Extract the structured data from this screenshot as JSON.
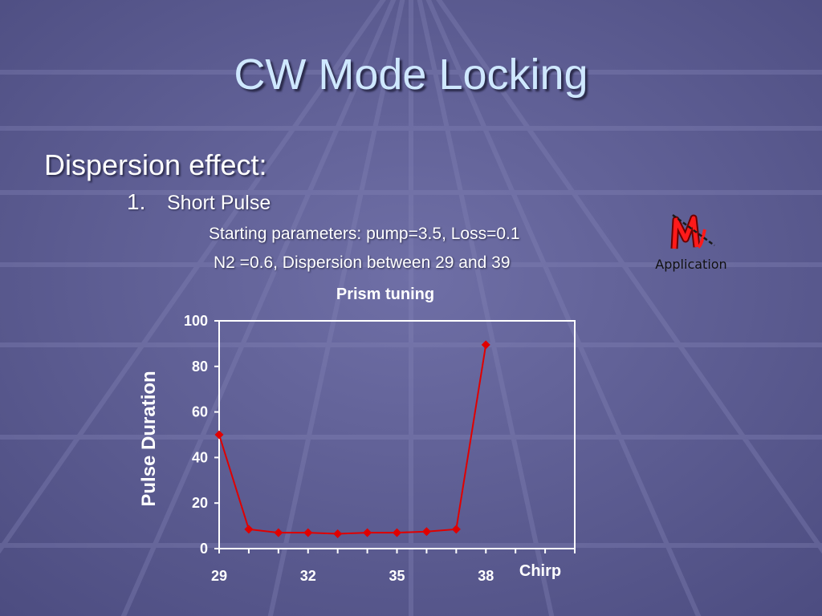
{
  "slide": {
    "title": "CW Mode Locking",
    "bullet": "Dispersion effect:",
    "item_number": "1.",
    "item_label": "Short Pulse",
    "line1": "Starting parameters: pump=3.5, Loss=0.1",
    "line2": "N2 =0.6, Dispersion between 29 and 39"
  },
  "app_icon": {
    "name": "matlab-application-icon",
    "label": "Application"
  },
  "colors": {
    "series": "#e00000",
    "axis": "#ffffff",
    "title": "#cfe8ff"
  },
  "chart_data": {
    "type": "line",
    "title": "Prism tuning",
    "xlabel": "Chirp",
    "ylabel": "Pulse Duration",
    "xlim": [
      29,
      41
    ],
    "ylim": [
      0,
      100
    ],
    "yticks": [
      0,
      20,
      40,
      60,
      80,
      100
    ],
    "xtick_labels": [
      {
        "x": 29,
        "label": "29"
      },
      {
        "x": 32,
        "label": "32"
      },
      {
        "x": 35,
        "label": "35"
      },
      {
        "x": 38,
        "label": "38"
      }
    ],
    "series": [
      {
        "x": [
          29,
          30,
          31,
          32,
          33,
          34,
          35,
          36,
          37,
          38
        ],
        "values": [
          50,
          8.5,
          7,
          7,
          6.5,
          7,
          7,
          7.5,
          8.5,
          89.5
        ]
      }
    ],
    "marker": "diamond",
    "grid": false
  }
}
